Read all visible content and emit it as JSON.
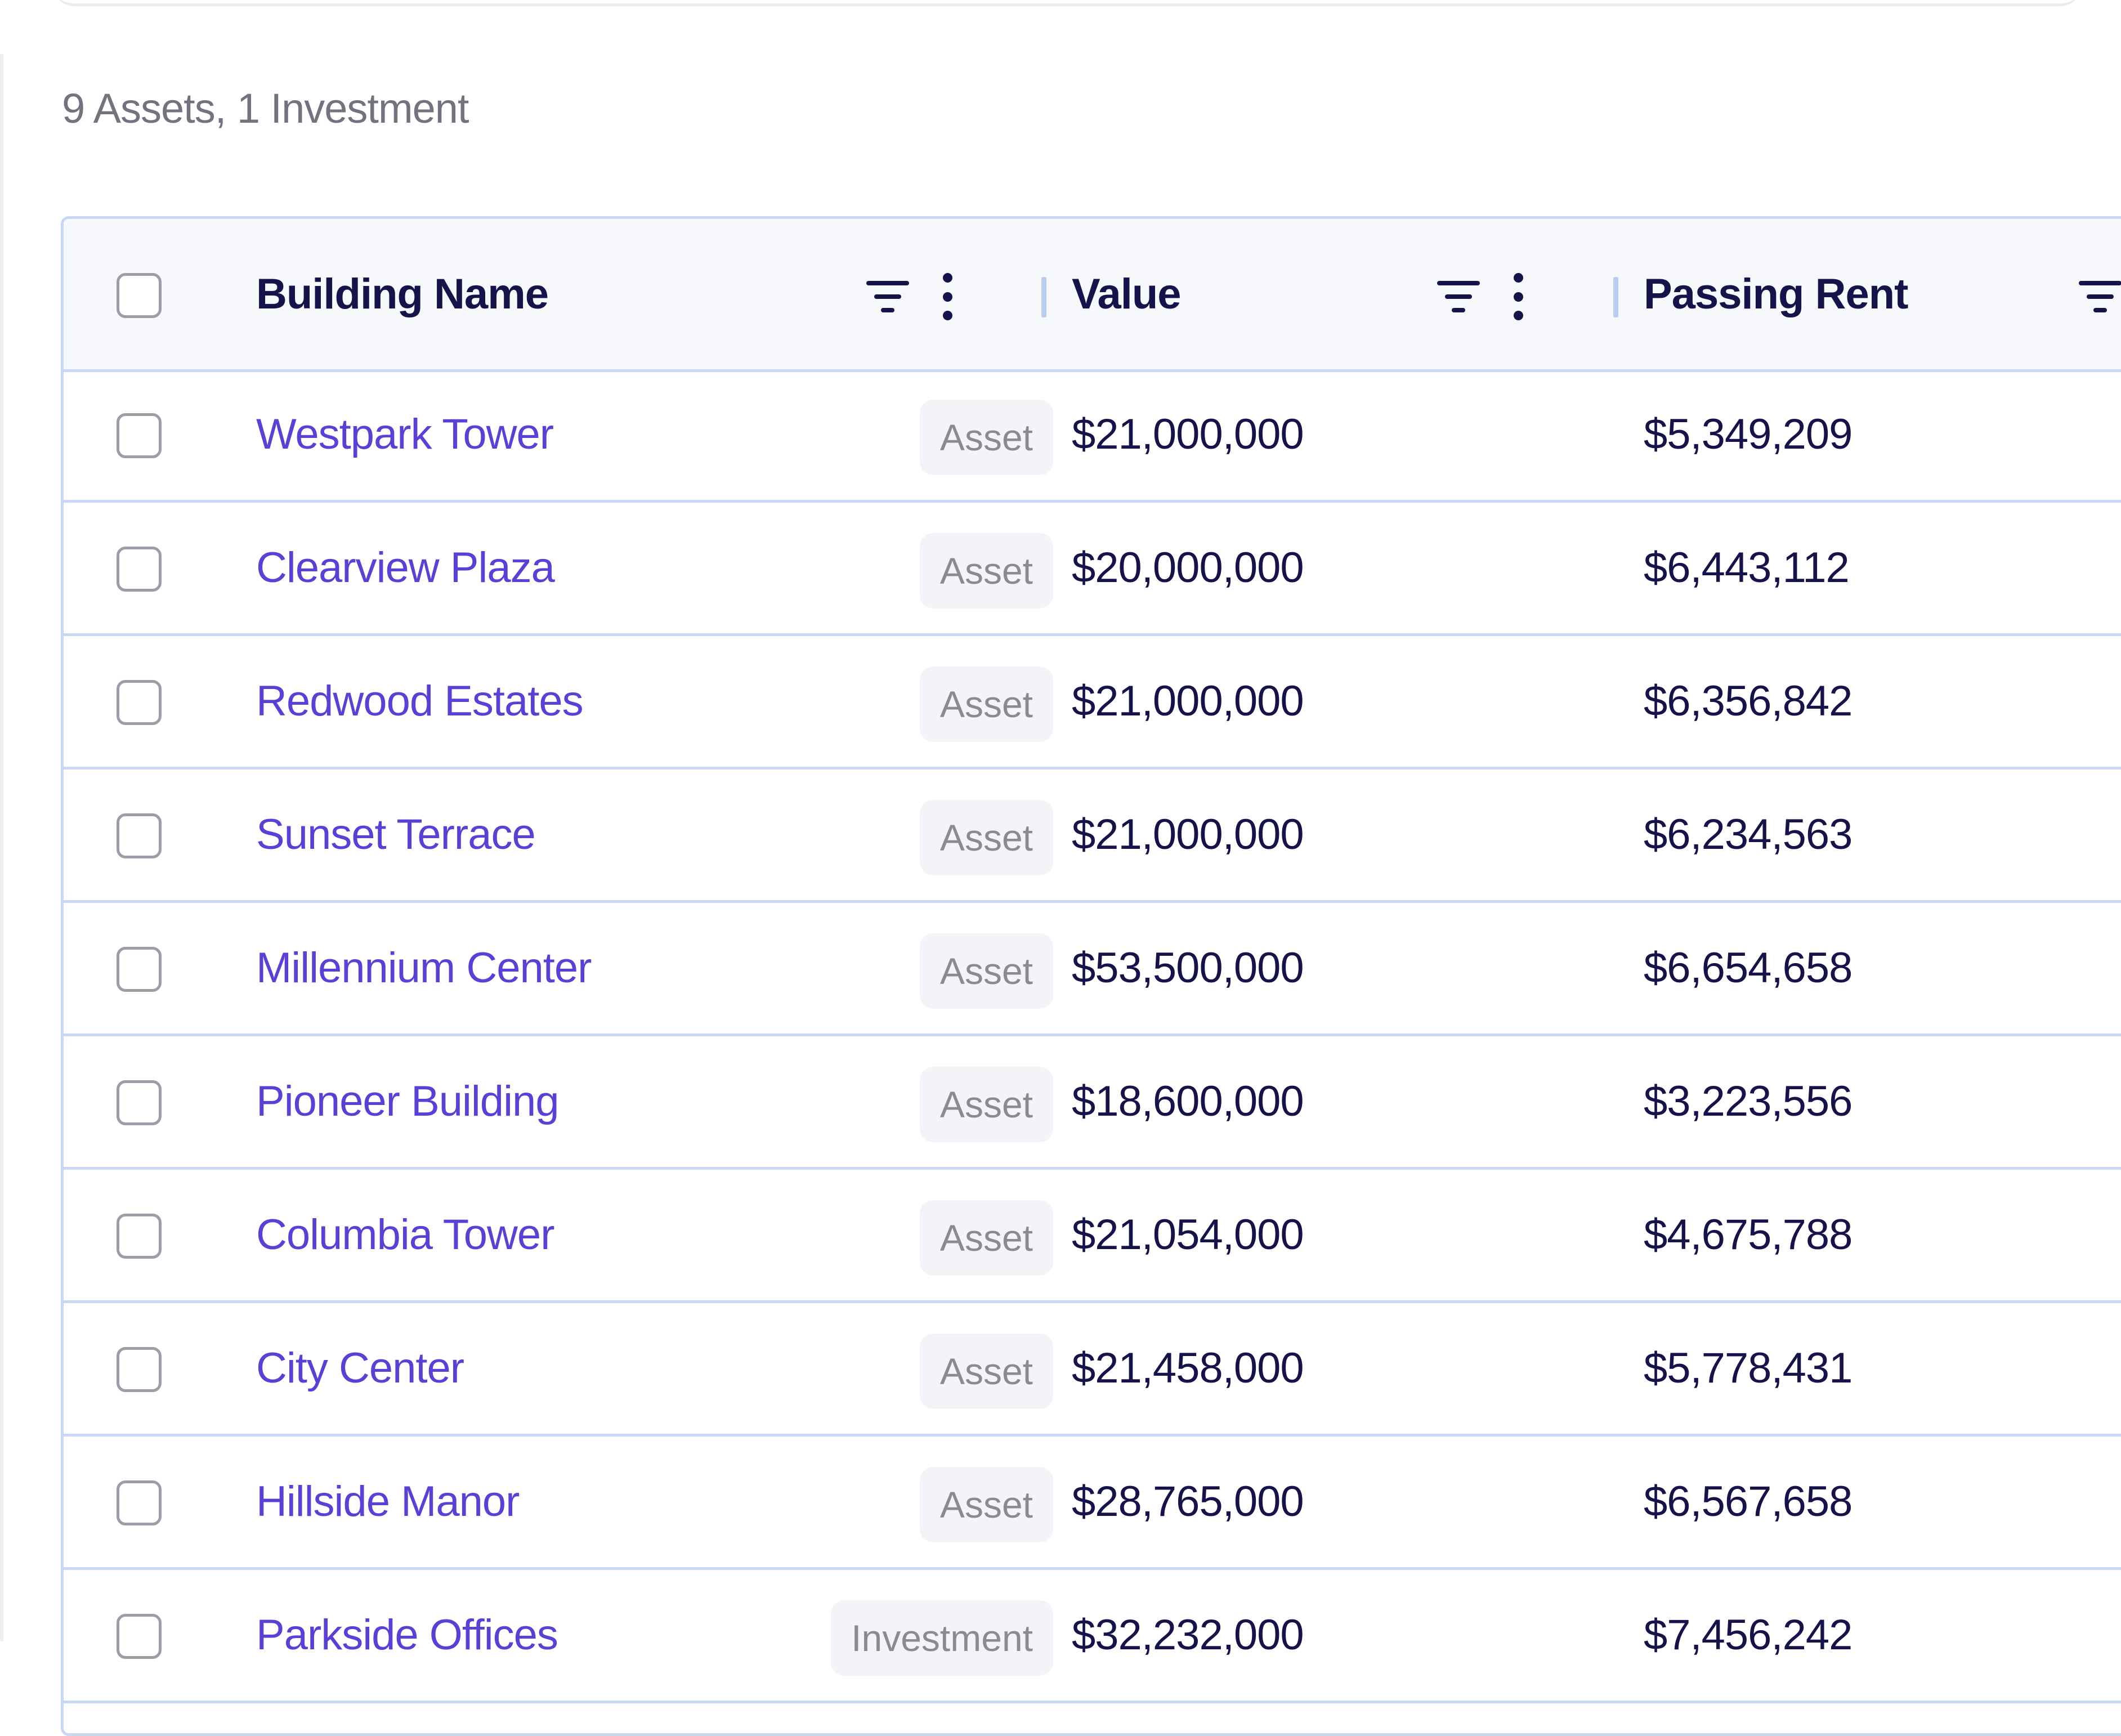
{
  "summary": "9 Assets, 1 Investment",
  "table": {
    "columns": [
      {
        "key": "building_name",
        "label": "Building Name"
      },
      {
        "key": "value",
        "label": "Value"
      },
      {
        "key": "passing_rent",
        "label": "Passing Rent"
      }
    ],
    "icons": {
      "filter": "filter-icon",
      "menu": "vertical-dots-menu-icon",
      "checkbox": "checkbox-unchecked"
    },
    "rows": [
      {
        "name": "Westpark Tower",
        "type": "Asset",
        "value": "$21,000,000",
        "passing_rent": "$5,349,209"
      },
      {
        "name": "Clearview Plaza",
        "type": "Asset",
        "value": "$20,000,000",
        "passing_rent": "$6,443,112"
      },
      {
        "name": "Redwood Estates",
        "type": "Asset",
        "value": "$21,000,000",
        "passing_rent": "$6,356,842"
      },
      {
        "name": "Sunset Terrace",
        "type": "Asset",
        "value": "$21,000,000",
        "passing_rent": "$6,234,563"
      },
      {
        "name": "Millennium Center",
        "type": "Asset",
        "value": "$53,500,000",
        "passing_rent": "$6,654,658"
      },
      {
        "name": "Pioneer Building",
        "type": "Asset",
        "value": "$18,600,000",
        "passing_rent": "$3,223,556"
      },
      {
        "name": "Columbia Tower",
        "type": "Asset",
        "value": "$21,054,000",
        "passing_rent": "$4,675,788"
      },
      {
        "name": "City Center",
        "type": "Asset",
        "value": "$21,458,000",
        "passing_rent": "$5,778,431"
      },
      {
        "name": "Hillside Manor",
        "type": "Asset",
        "value": "$28,765,000",
        "passing_rent": "$6,567,658"
      },
      {
        "name": "Parkside Offices",
        "type": "Investment",
        "value": "$32,232,000",
        "passing_rent": "$7,456,242"
      }
    ]
  },
  "colors": {
    "link": "#5b3fd6",
    "text": "#16124a",
    "border": "#c9d8f2",
    "header_bg": "#f6f8fc",
    "badge_bg": "#f4f4f8",
    "badge_text": "#8a8a93",
    "muted": "#73737f"
  }
}
